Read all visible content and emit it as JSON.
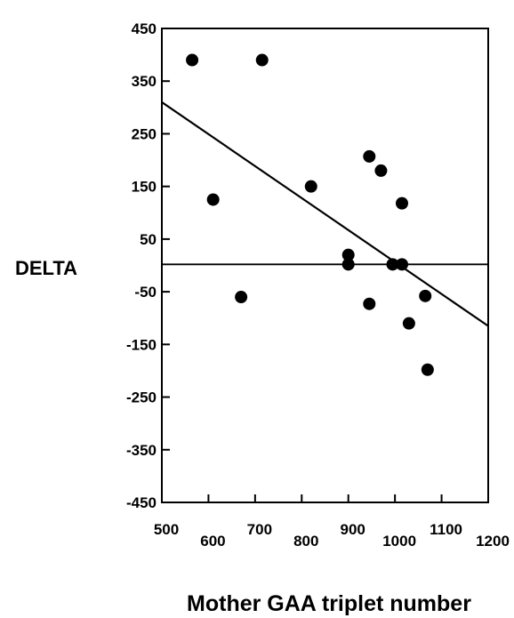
{
  "chart_data": {
    "type": "scatter",
    "xlabel": "Mother GAA triplet number",
    "ylabel": "DELTA",
    "xlim": [
      500,
      1200
    ],
    "ylim": [
      -450,
      450
    ],
    "x_ticks": [
      500,
      600,
      700,
      800,
      900,
      1000,
      1100,
      1200
    ],
    "x_tick_labels": [
      "500",
      "600",
      "700",
      "800",
      "900",
      "1000",
      "1100",
      "1200"
    ],
    "y_ticks": [
      450,
      350,
      250,
      150,
      50,
      -50,
      -150,
      -250,
      -350,
      -450
    ],
    "y_tick_labels": [
      "450",
      "350",
      "250",
      "150",
      "50",
      "-50",
      "-150",
      "-250",
      "-350",
      "-450"
    ],
    "grid": false,
    "points": [
      {
        "x": 565,
        "y": 390
      },
      {
        "x": 610,
        "y": 125
      },
      {
        "x": 670,
        "y": -60
      },
      {
        "x": 715,
        "y": 390
      },
      {
        "x": 820,
        "y": 150
      },
      {
        "x": 900,
        "y": 20
      },
      {
        "x": 900,
        "y": 2
      },
      {
        "x": 945,
        "y": 207
      },
      {
        "x": 945,
        "y": -73
      },
      {
        "x": 970,
        "y": 180
      },
      {
        "x": 995,
        "y": 2
      },
      {
        "x": 1015,
        "y": 118
      },
      {
        "x": 1015,
        "y": 2
      },
      {
        "x": 1030,
        "y": -110
      },
      {
        "x": 1065,
        "y": -58
      },
      {
        "x": 1070,
        "y": -198
      }
    ],
    "regression_line": {
      "x": [
        500,
        1200
      ],
      "y": [
        310,
        -115
      ]
    },
    "reference_line": {
      "y": 2
    }
  }
}
